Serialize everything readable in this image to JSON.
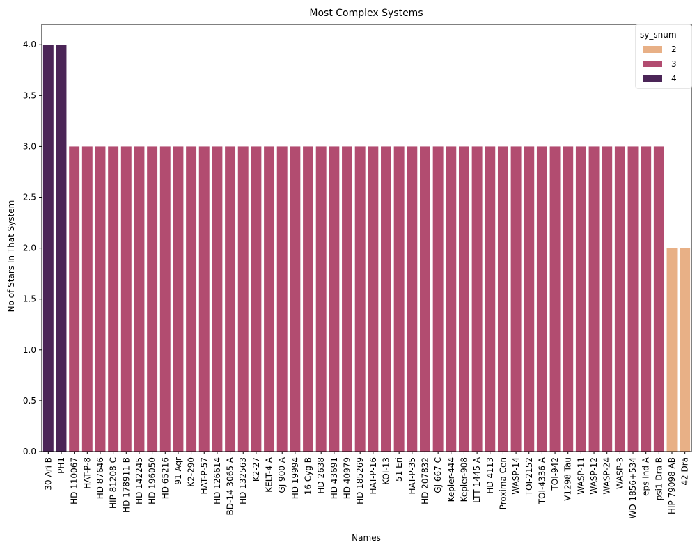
{
  "chart_data": {
    "type": "bar",
    "title": "Most Complex Systems",
    "xlabel": "Names",
    "ylabel": "No of Stars In That System",
    "ylim": [
      0,
      4.2
    ],
    "yticks": [
      "0.0",
      "0.5",
      "1.0",
      "1.5",
      "2.0",
      "2.5",
      "3.0",
      "3.5",
      "4.0"
    ],
    "grid": false,
    "legend": {
      "title": "sy_snum",
      "placement": "top-right",
      "entries": [
        {
          "label": "2",
          "color": "#e8b086"
        },
        {
          "label": "3",
          "color": "#b24c70"
        },
        {
          "label": "4",
          "color": "#4b2557"
        }
      ]
    },
    "categories": [
      "30 Ari B",
      "PH1",
      "HD 110067",
      "HAT-P-8",
      "HD 87646",
      "HIP 81208 C",
      "HD 178911 B",
      "HD 142245",
      "HD 196050",
      "HD 65216",
      "91 Aqr",
      "K2-290",
      "HAT-P-57",
      "HD 126614",
      "BD-14 3065 A",
      "HD 132563",
      "K2-27",
      "KELT-4 A",
      "GJ 900 A",
      "HD 19994",
      "16 Cyg B",
      "HD 2638",
      "HD 43691",
      "HD 40979",
      "HD 185269",
      "HAT-P-16",
      "KOI-13",
      "51 Eri",
      "HAT-P-35",
      "HD 207832",
      "GJ 667 C",
      "Kepler-444",
      "Kepler-908",
      "LTT 1445 A",
      "HD 4113",
      "Proxima Cen",
      "WASP-14",
      "TOI-2152",
      "TOI-4336 A",
      "TOI-942",
      "V1298 Tau",
      "WASP-11",
      "WASP-12",
      "WASP-24",
      "WASP-3",
      "WD 1856+534",
      "eps Ind A",
      "psi1 Dra B",
      "HIP 79098 AB",
      "42 Dra"
    ],
    "values": [
      4,
      4,
      3,
      3,
      3,
      3,
      3,
      3,
      3,
      3,
      3,
      3,
      3,
      3,
      3,
      3,
      3,
      3,
      3,
      3,
      3,
      3,
      3,
      3,
      3,
      3,
      3,
      3,
      3,
      3,
      3,
      3,
      3,
      3,
      3,
      3,
      3,
      3,
      3,
      3,
      3,
      3,
      3,
      3,
      3,
      3,
      3,
      3,
      2,
      2
    ],
    "colors": {
      "2": "#e8b086",
      "3": "#b24c70",
      "4": "#4b2557"
    }
  }
}
